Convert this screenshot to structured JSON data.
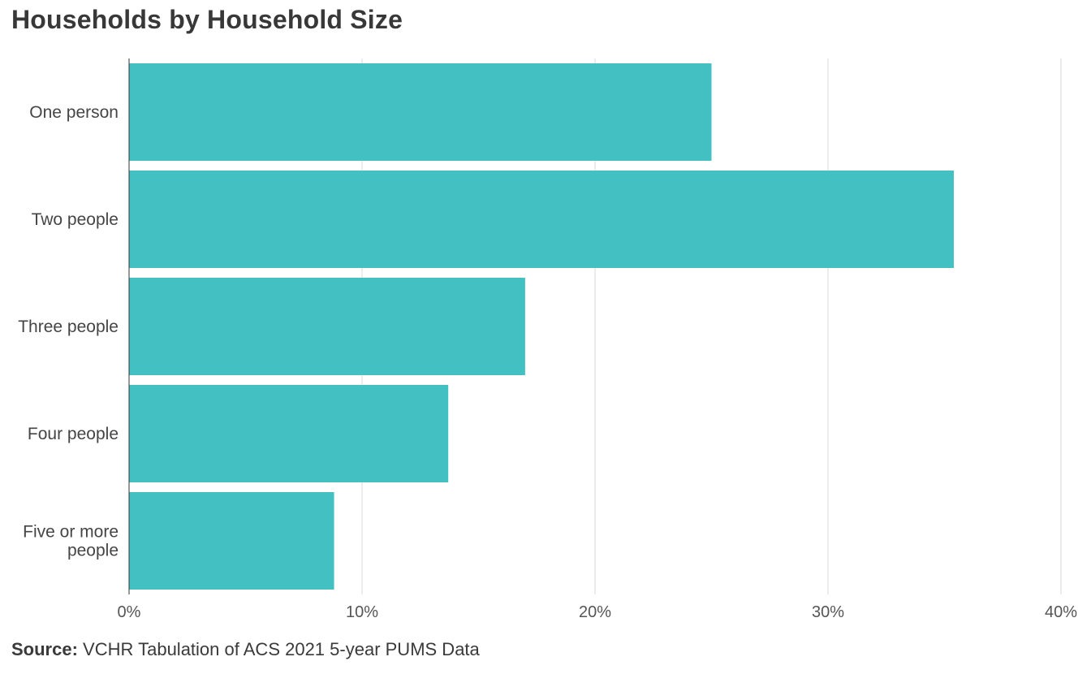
{
  "chart_data": {
    "type": "bar",
    "orientation": "horizontal",
    "title": "Households by Household Size",
    "categories": [
      "One person",
      "Two people",
      "Three people",
      "Four people",
      "Five or more people"
    ],
    "category_label_lines": [
      [
        "One person"
      ],
      [
        "Two people"
      ],
      [
        "Three people"
      ],
      [
        "Four people"
      ],
      [
        "Five or more",
        "people"
      ]
    ],
    "values": [
      25.0,
      35.4,
      17.0,
      13.7,
      8.8
    ],
    "xlim": [
      0,
      40
    ],
    "xticks": [
      0,
      10,
      20,
      30,
      40
    ],
    "xtick_labels": [
      "0%",
      "10%",
      "20%",
      "30%",
      "40%"
    ],
    "xlabel": "",
    "ylabel": "",
    "grid": true,
    "bar_color": "#42c0c2"
  },
  "source": {
    "label": "Source:",
    "text": "VCHR Tabulation of ACS 2021 5-year PUMS Data"
  }
}
